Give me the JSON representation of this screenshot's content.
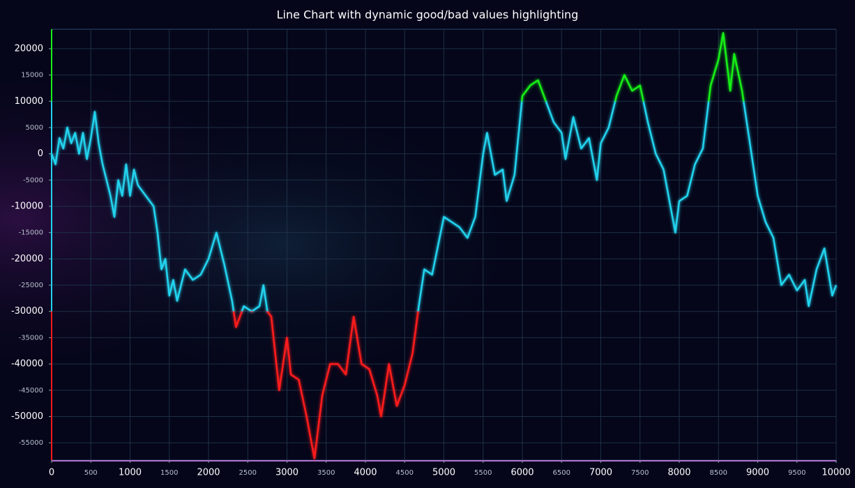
{
  "chart_data": {
    "type": "line",
    "title": "Line Chart with dynamic good/bad values highlighting",
    "x": [
      0,
      50,
      100,
      150,
      200,
      250,
      300,
      350,
      400,
      450,
      500,
      550,
      600,
      650,
      700,
      750,
      800,
      850,
      900,
      950,
      1000,
      1050,
      1100,
      1200,
      1300,
      1350,
      1400,
      1450,
      1500,
      1550,
      1600,
      1700,
      1800,
      1900,
      2000,
      2100,
      2200,
      2300,
      2350,
      2450,
      2550,
      2650,
      2700,
      2750,
      2800,
      2900,
      3000,
      3050,
      3150,
      3250,
      3350,
      3450,
      3550,
      3650,
      3750,
      3850,
      3950,
      4050,
      4150,
      4200,
      4300,
      4400,
      4500,
      4600,
      4680,
      4750,
      4850,
      5000,
      5100,
      5200,
      5300,
      5400,
      5500,
      5550,
      5650,
      5750,
      5800,
      5900,
      6000,
      6100,
      6200,
      6300,
      6400,
      6500,
      6550,
      6650,
      6750,
      6850,
      6950,
      7000,
      7100,
      7200,
      7300,
      7400,
      7500,
      7600,
      7700,
      7800,
      7950,
      8000,
      8100,
      8200,
      8300,
      8400,
      8500,
      8560,
      8650,
      8700,
      8800,
      8900,
      9000,
      9100,
      9200,
      9300,
      9400,
      9500,
      9600,
      9650,
      9750,
      9850,
      9950,
      10000
    ],
    "values": [
      0,
      -2000,
      3000,
      1000,
      5000,
      2000,
      4000,
      0,
      4000,
      -1000,
      3000,
      8000,
      2000,
      -2000,
      -5000,
      -8000,
      -12000,
      -5000,
      -8000,
      -2000,
      -8000,
      -3000,
      -6000,
      -8000,
      -10000,
      -15000,
      -22000,
      -20000,
      -27000,
      -24000,
      -28000,
      -22000,
      -24000,
      -23000,
      -20000,
      -15000,
      -21000,
      -28000,
      -33000,
      -29000,
      -30000,
      -29000,
      -25000,
      -30000,
      -31000,
      -45000,
      -35000,
      -42000,
      -43000,
      -50000,
      -58000,
      -46000,
      -40000,
      -40000,
      -42000,
      -31000,
      -40000,
      -41000,
      -46000,
      -50000,
      -40000,
      -48000,
      -44000,
      -38000,
      -29000,
      -22000,
      -23000,
      -12000,
      -13000,
      -14000,
      -16000,
      -12000,
      0,
      4000,
      -4000,
      -3000,
      -9000,
      -4000,
      11000,
      13000,
      14000,
      10000,
      6000,
      4000,
      -1000,
      7000,
      1000,
      3000,
      -5000,
      2000,
      5000,
      11000,
      15000,
      12000,
      13000,
      6000,
      0,
      -3000,
      -15000,
      -9000,
      -8000,
      -2000,
      1000,
      13000,
      18000,
      23000,
      12000,
      19000,
      12000,
      2000,
      -8000,
      -13000,
      -16000,
      -25000,
      -23000,
      -26000,
      -24000,
      -29000,
      -22000,
      -18000,
      -27000,
      -25000
    ],
    "color": "#22d3ee",
    "good_color": "#16f016",
    "bad_color": "#ff1a1a",
    "good_threshold": 10000,
    "bad_threshold": -30000,
    "xlim": [
      0,
      10000
    ],
    "ylim": [
      -58300,
      23700
    ],
    "xticks": [
      0,
      500,
      1000,
      1500,
      2000,
      2500,
      3000,
      3500,
      4000,
      4500,
      5000,
      5500,
      6000,
      6500,
      7000,
      7500,
      8000,
      8500,
      9000,
      9500,
      10000
    ],
    "yticks": [
      -55000,
      -50000,
      -45000,
      -40000,
      -35000,
      -30000,
      -25000,
      -20000,
      -15000,
      -10000,
      -5000,
      0,
      5000,
      10000,
      15000,
      20000
    ],
    "grid": true
  }
}
